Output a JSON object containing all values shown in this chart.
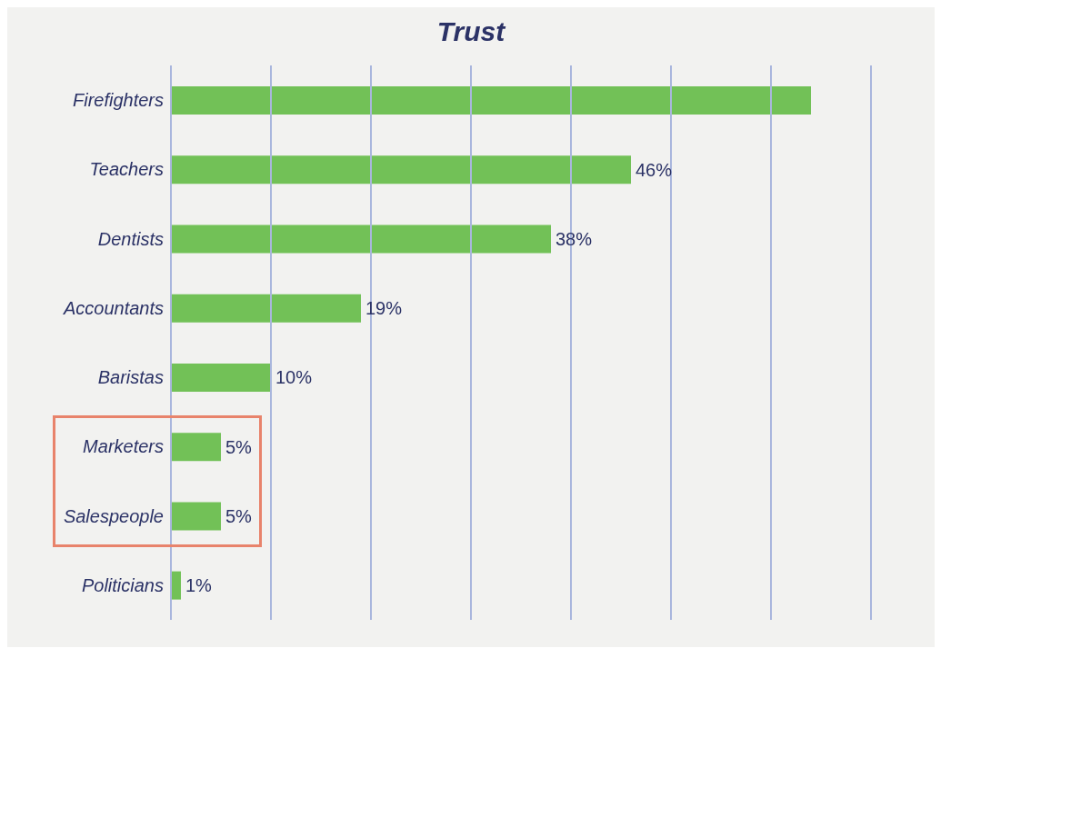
{
  "chart_data": {
    "type": "bar",
    "orientation": "horizontal",
    "title": "Trust",
    "categories": [
      "Firefighters",
      "Teachers",
      "Dentists",
      "Accountants",
      "Baristas",
      "Marketers",
      "Salespeople",
      "Politicians"
    ],
    "values": [
      64,
      46,
      38,
      19,
      10,
      5,
      5,
      1
    ],
    "value_labels": [
      null,
      "46%",
      "38%",
      "19%",
      "10%",
      "5%",
      "5%",
      "1%"
    ],
    "color": "#72c157",
    "xlim": [
      0,
      70
    ],
    "xticks": [
      {
        "value": 0,
        "label": null
      },
      {
        "value": 10,
        "label": null
      },
      {
        "value": 20,
        "label": null
      },
      {
        "value": 30,
        "label": null
      },
      {
        "value": 40,
        "label": null
      },
      {
        "value": 50,
        "label": null
      },
      {
        "value": 60,
        "label": null
      },
      {
        "value": 70,
        "label": null
      }
    ],
    "grid": "x",
    "tick_labels": "y"
  }
}
